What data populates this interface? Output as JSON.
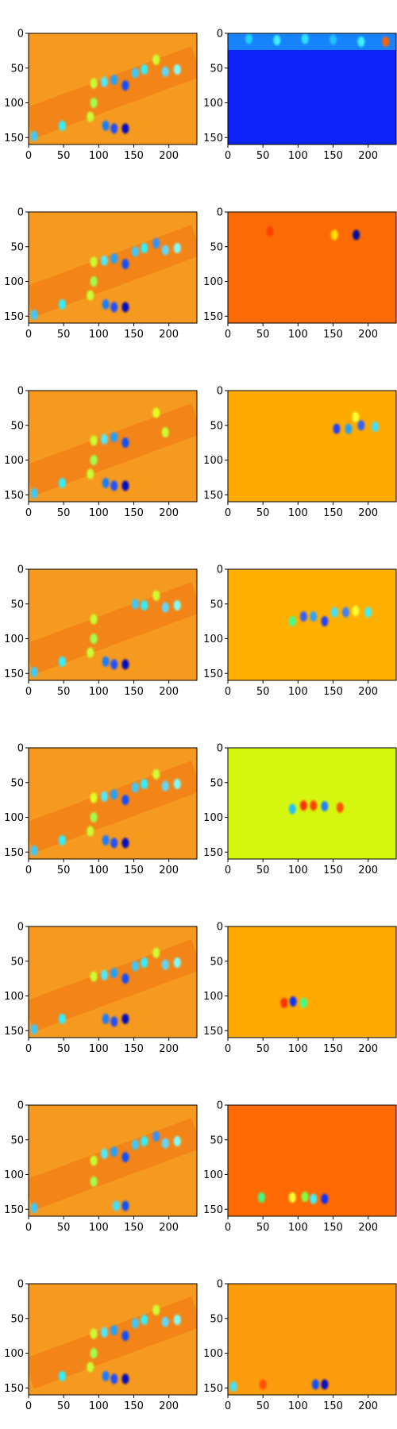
{
  "chart_data": {
    "type": "heatmap",
    "colormap": "jet",
    "layout": {
      "rows": 8,
      "cols": 2
    },
    "axis": {
      "xlim": [
        0,
        240
      ],
      "ylim": [
        160,
        0
      ],
      "xticks": [
        0,
        50,
        100,
        150,
        200
      ],
      "yticks": [
        0,
        50,
        100,
        150
      ]
    },
    "background_colors": {
      "left": "#f59a1e",
      "right": [
        "#0c23f8",
        "#fb6b05",
        "#feaa00",
        "#feaf00",
        "#d5f70f",
        "#feaa00",
        "#fd6a04",
        "#fd9c0b"
      ]
    },
    "features": {
      "left": [
        [
          {
            "x": 8,
            "y": 148,
            "c": "#3ec9ff"
          },
          {
            "x": 48,
            "y": 133,
            "c": "#2ff0ff"
          },
          {
            "x": 88,
            "y": 120,
            "c": "#c8ff30"
          },
          {
            "x": 93,
            "y": 100,
            "c": "#a0ff50"
          },
          {
            "x": 110,
            "y": 133,
            "c": "#1c7bff"
          },
          {
            "x": 122,
            "y": 137,
            "c": "#2050ff"
          },
          {
            "x": 138,
            "y": 137,
            "c": "#0008c0"
          },
          {
            "x": 93,
            "y": 72,
            "c": "#c8ff30"
          },
          {
            "x": 108,
            "y": 70,
            "c": "#4fe8ff"
          },
          {
            "x": 122,
            "y": 67,
            "c": "#20a0ff"
          },
          {
            "x": 138,
            "y": 75,
            "c": "#1050ff"
          },
          {
            "x": 152,
            "y": 57,
            "c": "#3ec9ff"
          },
          {
            "x": 165,
            "y": 52,
            "c": "#2ff0ff"
          },
          {
            "x": 182,
            "y": 38,
            "c": "#d0ff30"
          },
          {
            "x": 195,
            "y": 55,
            "c": "#5fd8ff"
          },
          {
            "x": 212,
            "y": 52,
            "c": "#80ffff"
          }
        ],
        [
          {
            "x": 8,
            "y": 148,
            "c": "#3ec9ff"
          },
          {
            "x": 48,
            "y": 133,
            "c": "#2ff0ff"
          },
          {
            "x": 88,
            "y": 120,
            "c": "#c8ff30"
          },
          {
            "x": 93,
            "y": 100,
            "c": "#a0ff50"
          },
          {
            "x": 110,
            "y": 133,
            "c": "#1c7bff"
          },
          {
            "x": 122,
            "y": 137,
            "c": "#2050ff"
          },
          {
            "x": 138,
            "y": 137,
            "c": "#0008c0"
          },
          {
            "x": 93,
            "y": 72,
            "c": "#c8ff30"
          },
          {
            "x": 108,
            "y": 70,
            "c": "#4fe8ff"
          },
          {
            "x": 122,
            "y": 67,
            "c": "#20a0ff"
          },
          {
            "x": 138,
            "y": 75,
            "c": "#1050ff"
          },
          {
            "x": 152,
            "y": 57,
            "c": "#3ec9ff"
          },
          {
            "x": 165,
            "y": 52,
            "c": "#2ff0ff"
          },
          {
            "x": 182,
            "y": 45,
            "c": "#3090ff"
          },
          {
            "x": 195,
            "y": 55,
            "c": "#5fd8ff"
          },
          {
            "x": 212,
            "y": 52,
            "c": "#80ffff"
          }
        ],
        [
          {
            "x": 8,
            "y": 148,
            "c": "#3ec9ff"
          },
          {
            "x": 48,
            "y": 133,
            "c": "#2ff0ff"
          },
          {
            "x": 88,
            "y": 120,
            "c": "#c8ff30"
          },
          {
            "x": 93,
            "y": 100,
            "c": "#a0ff50"
          },
          {
            "x": 110,
            "y": 133,
            "c": "#1c7bff"
          },
          {
            "x": 122,
            "y": 137,
            "c": "#2050ff"
          },
          {
            "x": 138,
            "y": 137,
            "c": "#0008c0"
          },
          {
            "x": 93,
            "y": 72,
            "c": "#c8ff30"
          },
          {
            "x": 108,
            "y": 70,
            "c": "#4fe8ff"
          },
          {
            "x": 122,
            "y": 67,
            "c": "#20a0ff"
          },
          {
            "x": 138,
            "y": 75,
            "c": "#1050ff"
          },
          {
            "x": 182,
            "y": 32,
            "c": "#e0ff20"
          },
          {
            "x": 195,
            "y": 60,
            "c": "#c8ff30"
          }
        ],
        [
          {
            "x": 8,
            "y": 148,
            "c": "#3ec9ff"
          },
          {
            "x": 48,
            "y": 133,
            "c": "#2ff0ff"
          },
          {
            "x": 88,
            "y": 120,
            "c": "#c8ff30"
          },
          {
            "x": 93,
            "y": 100,
            "c": "#a0ff50"
          },
          {
            "x": 110,
            "y": 133,
            "c": "#1c7bff"
          },
          {
            "x": 122,
            "y": 137,
            "c": "#2050ff"
          },
          {
            "x": 138,
            "y": 137,
            "c": "#0008c0"
          },
          {
            "x": 93,
            "y": 72,
            "c": "#c8ff30"
          },
          {
            "x": 152,
            "y": 50,
            "c": "#3ec9ff"
          },
          {
            "x": 165,
            "y": 52,
            "c": "#2ff0ff"
          },
          {
            "x": 182,
            "y": 38,
            "c": "#d0ff30"
          },
          {
            "x": 195,
            "y": 55,
            "c": "#5fd8ff"
          },
          {
            "x": 212,
            "y": 52,
            "c": "#80ffff"
          }
        ],
        [
          {
            "x": 8,
            "y": 148,
            "c": "#3ec9ff"
          },
          {
            "x": 48,
            "y": 133,
            "c": "#2ff0ff"
          },
          {
            "x": 88,
            "y": 120,
            "c": "#c8ff30"
          },
          {
            "x": 93,
            "y": 100,
            "c": "#a0ff50"
          },
          {
            "x": 110,
            "y": 133,
            "c": "#1c7bff"
          },
          {
            "x": 122,
            "y": 137,
            "c": "#2050ff"
          },
          {
            "x": 138,
            "y": 137,
            "c": "#0008c0"
          },
          {
            "x": 93,
            "y": 72,
            "c": "#e0ff20"
          },
          {
            "x": 108,
            "y": 70,
            "c": "#4fe8ff"
          },
          {
            "x": 122,
            "y": 67,
            "c": "#20a0ff"
          },
          {
            "x": 138,
            "y": 75,
            "c": "#1050ff"
          },
          {
            "x": 152,
            "y": 57,
            "c": "#3ec9ff"
          },
          {
            "x": 165,
            "y": 52,
            "c": "#2ff0ff"
          },
          {
            "x": 182,
            "y": 38,
            "c": "#d0ff30"
          },
          {
            "x": 195,
            "y": 55,
            "c": "#5fd8ff"
          },
          {
            "x": 212,
            "y": 52,
            "c": "#80ffff"
          }
        ],
        [
          {
            "x": 8,
            "y": 148,
            "c": "#3ec9ff"
          },
          {
            "x": 48,
            "y": 133,
            "c": "#2ff0ff"
          },
          {
            "x": 110,
            "y": 133,
            "c": "#1c7bff"
          },
          {
            "x": 122,
            "y": 137,
            "c": "#2050ff"
          },
          {
            "x": 138,
            "y": 133,
            "c": "#0008c0"
          },
          {
            "x": 93,
            "y": 72,
            "c": "#c8ff30"
          },
          {
            "x": 108,
            "y": 70,
            "c": "#4fe8ff"
          },
          {
            "x": 122,
            "y": 67,
            "c": "#20a0ff"
          },
          {
            "x": 138,
            "y": 75,
            "c": "#1050ff"
          },
          {
            "x": 152,
            "y": 57,
            "c": "#3ec9ff"
          },
          {
            "x": 165,
            "y": 52,
            "c": "#2ff0ff"
          },
          {
            "x": 182,
            "y": 38,
            "c": "#d0ff30"
          },
          {
            "x": 195,
            "y": 55,
            "c": "#5fd8ff"
          },
          {
            "x": 212,
            "y": 52,
            "c": "#80ffff"
          }
        ],
        [
          {
            "x": 8,
            "y": 148,
            "c": "#3ec9ff"
          },
          {
            "x": 93,
            "y": 110,
            "c": "#a0ff50"
          },
          {
            "x": 138,
            "y": 145,
            "c": "#1050ff"
          },
          {
            "x": 125,
            "y": 145,
            "c": "#40e0ff"
          },
          {
            "x": 93,
            "y": 80,
            "c": "#c8ff30"
          },
          {
            "x": 108,
            "y": 70,
            "c": "#4fe8ff"
          },
          {
            "x": 122,
            "y": 67,
            "c": "#20a0ff"
          },
          {
            "x": 138,
            "y": 75,
            "c": "#1050ff"
          },
          {
            "x": 152,
            "y": 57,
            "c": "#3ec9ff"
          },
          {
            "x": 165,
            "y": 52,
            "c": "#2ff0ff"
          },
          {
            "x": 182,
            "y": 45,
            "c": "#3090ff"
          },
          {
            "x": 195,
            "y": 55,
            "c": "#5fd8ff"
          },
          {
            "x": 212,
            "y": 52,
            "c": "#80ffff"
          }
        ],
        [
          {
            "x": 48,
            "y": 133,
            "c": "#2ff0ff"
          },
          {
            "x": 88,
            "y": 120,
            "c": "#c8ff30"
          },
          {
            "x": 93,
            "y": 100,
            "c": "#a0ff50"
          },
          {
            "x": 110,
            "y": 133,
            "c": "#1c7bff"
          },
          {
            "x": 122,
            "y": 137,
            "c": "#2050ff"
          },
          {
            "x": 138,
            "y": 137,
            "c": "#0008c0"
          },
          {
            "x": 93,
            "y": 72,
            "c": "#c8ff30"
          },
          {
            "x": 108,
            "y": 70,
            "c": "#4fe8ff"
          },
          {
            "x": 122,
            "y": 67,
            "c": "#20a0ff"
          },
          {
            "x": 138,
            "y": 75,
            "c": "#1050ff"
          },
          {
            "x": 152,
            "y": 57,
            "c": "#3ec9ff"
          },
          {
            "x": 165,
            "y": 52,
            "c": "#2ff0ff"
          },
          {
            "x": 182,
            "y": 38,
            "c": "#d0ff30"
          },
          {
            "x": 195,
            "y": 55,
            "c": "#5fd8ff"
          },
          {
            "x": 212,
            "y": 52,
            "c": "#80ffff"
          }
        ]
      ],
      "right": [
        [
          {
            "x": 30,
            "y": 8,
            "c": "#20d0ff"
          },
          {
            "x": 70,
            "y": 10,
            "c": "#40f0ff"
          },
          {
            "x": 110,
            "y": 8,
            "c": "#30e0ff"
          },
          {
            "x": 150,
            "y": 9,
            "c": "#20c0ff"
          },
          {
            "x": 190,
            "y": 12,
            "c": "#40f0ff"
          },
          {
            "x": 225,
            "y": 12,
            "c": "#ff6000"
          }
        ],
        [
          {
            "x": 183,
            "y": 33,
            "c": "#0010a0"
          },
          {
            "x": 152,
            "y": 33,
            "c": "#ffe000"
          },
          {
            "x": 60,
            "y": 28,
            "c": "#ff4000"
          }
        ],
        [
          {
            "x": 155,
            "y": 55,
            "c": "#2040ff"
          },
          {
            "x": 172,
            "y": 55,
            "c": "#20a0ff"
          },
          {
            "x": 190,
            "y": 50,
            "c": "#3060ff"
          },
          {
            "x": 210,
            "y": 52,
            "c": "#40e0ff"
          },
          {
            "x": 182,
            "y": 38,
            "c": "#ffff30"
          }
        ],
        [
          {
            "x": 92,
            "y": 75,
            "c": "#40ff90"
          },
          {
            "x": 108,
            "y": 68,
            "c": "#3060ff"
          },
          {
            "x": 122,
            "y": 68,
            "c": "#30a0ff"
          },
          {
            "x": 138,
            "y": 75,
            "c": "#2040ff"
          },
          {
            "x": 152,
            "y": 62,
            "c": "#40e0ff"
          },
          {
            "x": 168,
            "y": 62,
            "c": "#4080ff"
          },
          {
            "x": 182,
            "y": 60,
            "c": "#ffff30"
          },
          {
            "x": 200,
            "y": 62,
            "c": "#40f0ff"
          }
        ],
        [
          {
            "x": 92,
            "y": 88,
            "c": "#20c0ff"
          },
          {
            "x": 108,
            "y": 83,
            "c": "#ff3000"
          },
          {
            "x": 122,
            "y": 83,
            "c": "#ff4000"
          },
          {
            "x": 138,
            "y": 84,
            "c": "#2080ff"
          },
          {
            "x": 160,
            "y": 86,
            "c": "#ff5000"
          }
        ],
        [
          {
            "x": 93,
            "y": 108,
            "c": "#1030ff"
          },
          {
            "x": 108,
            "y": 110,
            "c": "#40ff90"
          },
          {
            "x": 80,
            "y": 110,
            "c": "#ff3000"
          }
        ],
        [
          {
            "x": 48,
            "y": 133,
            "c": "#40ff80"
          },
          {
            "x": 92,
            "y": 133,
            "c": "#ffff30"
          },
          {
            "x": 110,
            "y": 132,
            "c": "#80ff40"
          },
          {
            "x": 122,
            "y": 135,
            "c": "#40f0ff"
          },
          {
            "x": 138,
            "y": 135,
            "c": "#1030ff"
          }
        ],
        [
          {
            "x": 8,
            "y": 148,
            "c": "#40e0ff"
          },
          {
            "x": 50,
            "y": 145,
            "c": "#ff5000"
          },
          {
            "x": 125,
            "y": 145,
            "c": "#1050ff"
          },
          {
            "x": 138,
            "y": 145,
            "c": "#0010c0"
          }
        ]
      ]
    }
  }
}
